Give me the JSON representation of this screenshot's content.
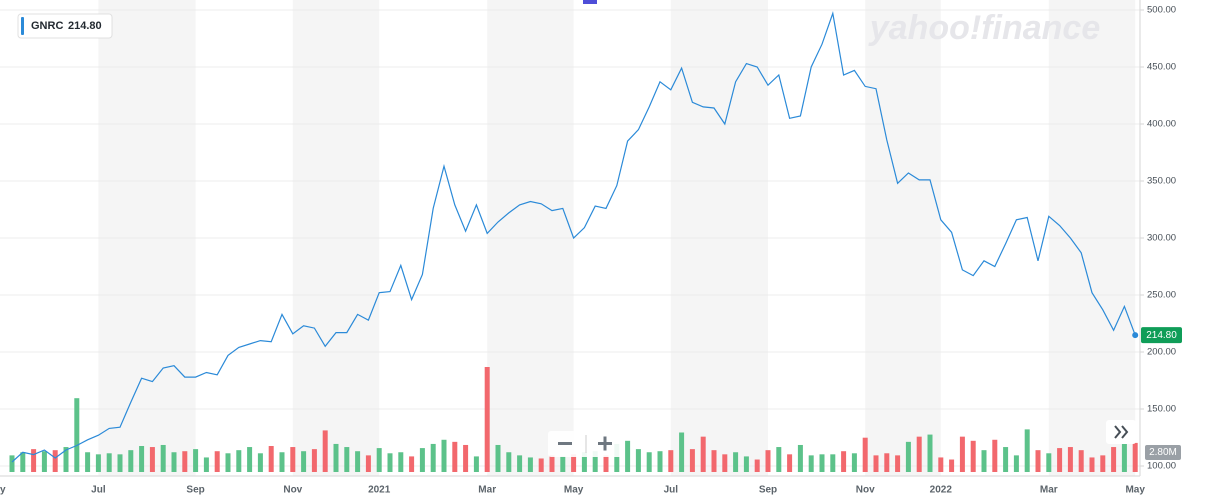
{
  "chart_data": {
    "type": "line",
    "watermark": "yahoo!finance",
    "categories": [
      "y",
      null,
      null,
      null,
      null,
      null,
      null,
      null,
      "Jul",
      null,
      null,
      null,
      null,
      null,
      null,
      null,
      null,
      "Sep",
      null,
      null,
      null,
      null,
      null,
      null,
      null,
      null,
      "Nov",
      null,
      null,
      null,
      null,
      null,
      null,
      null,
      "2021",
      null,
      null,
      null,
      null,
      null,
      null,
      null,
      null,
      null,
      "Mar",
      null,
      null,
      null,
      null,
      null,
      null,
      null,
      "May",
      null,
      null,
      null,
      null,
      null,
      null,
      null,
      null,
      "Jul",
      null,
      null,
      null,
      null,
      null,
      null,
      null,
      null,
      "Sep",
      null,
      null,
      null,
      null,
      null,
      null,
      null,
      null,
      "Nov",
      null,
      null,
      null,
      null,
      null,
      null,
      "2022",
      null,
      null,
      null,
      null,
      null,
      null,
      null,
      null,
      null,
      "Mar",
      null,
      null,
      null,
      null,
      null,
      null,
      null,
      "May"
    ],
    "series": [
      {
        "name": "GNRC",
        "color": "#2b8ad8",
        "values": [
          103.5,
          112,
          110,
          114,
          107,
          114,
          118,
          123,
          127,
          133,
          134,
          156,
          177,
          174,
          186,
          188,
          178,
          178,
          182,
          180,
          197,
          204,
          207,
          210,
          209,
          233,
          216,
          223,
          221,
          205,
          217,
          217,
          233,
          228,
          252,
          253,
          276,
          246,
          268,
          326,
          363,
          329,
          306,
          329,
          304,
          314,
          322,
          329,
          332,
          330,
          324,
          326,
          300,
          309,
          328,
          326,
          346,
          385,
          395,
          415,
          437,
          430,
          449,
          419,
          415,
          414,
          400,
          437,
          453,
          450,
          434,
          443,
          405,
          407,
          450,
          470,
          497,
          443,
          447,
          433,
          431,
          386,
          348,
          357,
          351,
          351,
          316,
          305,
          272,
          267,
          280,
          275,
          295,
          316,
          318,
          280,
          319,
          311,
          300,
          287,
          252,
          237,
          219,
          240,
          214.8
        ],
        "value_labels": [
          null,
          null,
          null,
          null,
          null,
          null,
          null,
          null,
          null,
          null,
          null,
          null,
          null,
          null,
          null,
          null,
          null,
          null,
          null,
          null,
          null,
          null,
          null,
          null,
          null,
          null,
          null,
          null,
          null,
          null,
          null,
          null,
          null,
          null,
          null,
          null,
          null,
          null,
          null,
          null,
          null,
          null,
          null,
          null,
          null,
          null,
          null,
          null,
          null,
          null,
          null,
          null,
          null,
          null,
          null,
          null,
          null,
          null,
          null,
          null,
          null,
          null,
          null,
          null,
          null,
          null,
          null,
          null,
          null,
          null,
          null,
          null,
          null,
          null,
          null,
          null,
          null,
          null,
          null,
          null,
          null,
          null,
          null,
          null,
          null,
          null,
          null,
          null,
          null,
          null,
          null,
          null,
          null,
          null,
          null,
          null,
          null,
          null,
          null,
          null,
          null,
          null,
          null,
          null,
          "214.80"
        ]
      }
    ],
    "volume": {
      "up_color": "#5cc28a",
      "down_color": "#f2686d",
      "values": [
        1600000,
        1900000,
        2200000,
        2000000,
        2100000,
        2400000,
        7100000,
        1900000,
        1700000,
        1800000,
        1700000,
        2100000,
        2500000,
        2400000,
        2600000,
        1900000,
        2000000,
        2200000,
        1400000,
        2000000,
        1800000,
        2100000,
        2400000,
        1800000,
        2500000,
        1900000,
        2400000,
        2000000,
        2200000,
        4000000,
        2700000,
        2400000,
        2000000,
        1600000,
        2300000,
        1800000,
        1900000,
        1500000,
        2300000,
        2700000,
        3100000,
        2900000,
        2600000,
        1500000,
        10100000,
        2600000,
        1900000,
        1600000,
        1400000,
        1300000,
        1600000,
        1500000,
        1700000,
        1900000,
        2000000,
        1600000,
        2700000,
        3000000,
        2200000,
        1900000,
        2000000,
        2100000,
        3800000,
        2200000,
        3400000,
        2100000,
        1700000,
        1900000,
        1500000,
        1200000,
        2100000,
        2400000,
        1700000,
        2600000,
        1600000,
        1700000,
        1700000,
        2000000,
        1800000,
        3300000,
        1600000,
        1800000,
        1600000,
        2900000,
        3400000,
        3600000,
        1400000,
        1200000,
        3400000,
        3000000,
        2100000,
        3100000,
        2400000,
        1600000,
        4100000,
        2100000,
        1800000,
        2300000,
        2400000,
        2100000,
        1400000,
        1600000,
        2400000,
        2700000,
        2800000
      ],
      "value_labels": [
        null,
        null,
        null,
        null,
        null,
        null,
        null,
        null,
        null,
        null,
        null,
        null,
        null,
        null,
        null,
        null,
        null,
        null,
        null,
        null,
        null,
        null,
        null,
        null,
        null,
        null,
        null,
        null,
        null,
        null,
        null,
        null,
        null,
        null,
        null,
        null,
        null,
        null,
        null,
        null,
        null,
        null,
        null,
        null,
        null,
        null,
        null,
        null,
        null,
        null,
        null,
        null,
        null,
        null,
        null,
        null,
        null,
        null,
        null,
        null,
        null,
        null,
        null,
        null,
        null,
        null,
        null,
        null,
        null,
        null,
        null,
        null,
        null,
        null,
        null,
        null,
        null,
        null,
        null,
        null,
        null,
        null,
        null,
        null,
        null,
        null,
        null,
        null,
        null,
        null,
        null,
        null,
        null,
        null,
        null,
        null,
        null,
        null,
        null,
        null,
        null,
        null,
        null,
        null,
        "2.80M"
      ]
    },
    "ylim": [
      100,
      500
    ],
    "yticks": [
      {
        "value": 100,
        "label": "100.00"
      },
      {
        "value": 150,
        "label": "150.00"
      },
      {
        "value": 200,
        "label": "200.00"
      },
      {
        "value": 250,
        "label": "250.00"
      },
      {
        "value": 300,
        "label": "300.00"
      },
      {
        "value": 350,
        "label": "350.00"
      },
      {
        "value": 400,
        "label": "400.00"
      },
      {
        "value": 450,
        "label": "450.00"
      },
      {
        "value": 500,
        "label": "500.00"
      }
    ],
    "grid": true
  }
}
